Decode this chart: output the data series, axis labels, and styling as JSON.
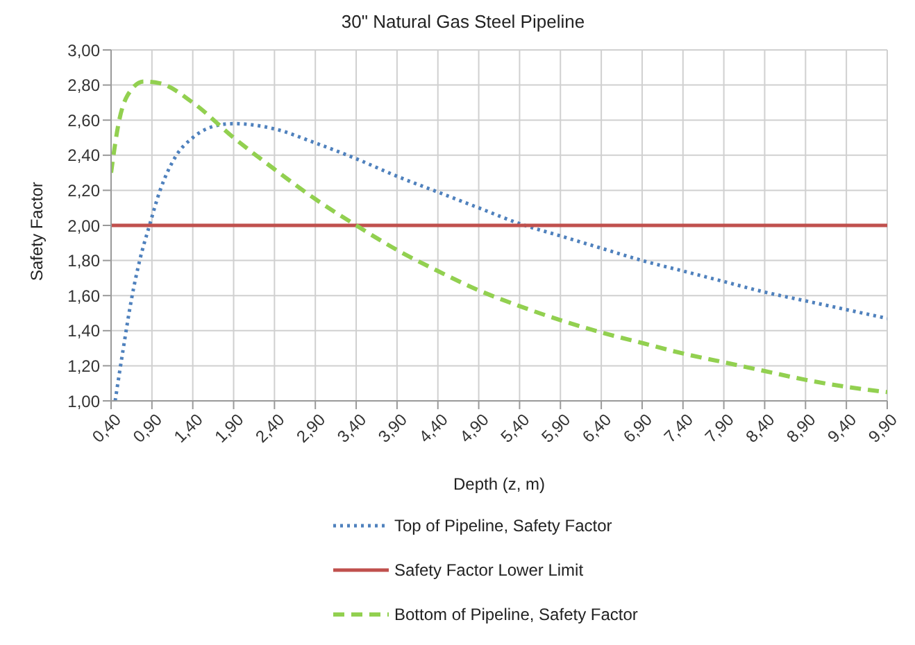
{
  "chart_data": {
    "type": "line",
    "title": "30\" Natural Gas Steel Pipeline",
    "xlabel": "Depth (z, m)",
    "ylabel": "Safety Factor",
    "xlim": [
      0.4,
      9.9
    ],
    "xticks": [
      {
        "value": 0.4,
        "label": "0,40"
      },
      {
        "value": 0.9,
        "label": "0,90"
      },
      {
        "value": 1.4,
        "label": "1,40"
      },
      {
        "value": 1.9,
        "label": "1,90"
      },
      {
        "value": 2.4,
        "label": "2,40"
      },
      {
        "value": 2.9,
        "label": "2,90"
      },
      {
        "value": 3.4,
        "label": "3,40"
      },
      {
        "value": 3.9,
        "label": "3,90"
      },
      {
        "value": 4.4,
        "label": "4,40"
      },
      {
        "value": 4.9,
        "label": "4,90"
      },
      {
        "value": 5.4,
        "label": "5,40"
      },
      {
        "value": 5.9,
        "label": "5,90"
      },
      {
        "value": 6.4,
        "label": "6,40"
      },
      {
        "value": 6.9,
        "label": "6,90"
      },
      {
        "value": 7.4,
        "label": "7,40"
      },
      {
        "value": 7.9,
        "label": "7,90"
      },
      {
        "value": 8.4,
        "label": "8,40"
      },
      {
        "value": 8.9,
        "label": "8,90"
      },
      {
        "value": 9.4,
        "label": "9,40"
      },
      {
        "value": 9.9,
        "label": "9,90"
      }
    ],
    "ylim": [
      1,
      3
    ],
    "yticks": [
      {
        "value": 1,
        "label": "1,00"
      },
      {
        "value": 1.2,
        "label": "1,20"
      },
      {
        "value": 1.4,
        "label": "1,40"
      },
      {
        "value": 1.6,
        "label": "1,60"
      },
      {
        "value": 1.8,
        "label": "1,80"
      },
      {
        "value": 2,
        "label": "2,00"
      },
      {
        "value": 2.2,
        "label": "2,20"
      },
      {
        "value": 2.4,
        "label": "2,40"
      },
      {
        "value": 2.6,
        "label": "2,60"
      },
      {
        "value": 2.8,
        "label": "2,80"
      },
      {
        "value": 3,
        "label": "3,00"
      }
    ],
    "grid": true,
    "legend": "bottom",
    "marker": "none",
    "series": [
      {
        "name": "Top of Pipeline, Safety Factor",
        "color": "#4f81bd",
        "line_style": "dotted",
        "x": [
          0.45,
          0.55,
          0.65,
          0.75,
          0.87,
          1.0,
          1.2,
          1.4,
          1.7,
          1.9,
          2.4,
          2.9,
          3.4,
          3.9,
          4.4,
          4.9,
          5.4,
          5.9,
          6.4,
          6.9,
          7.4,
          7.9,
          8.4,
          8.9,
          9.4,
          9.9
        ],
        "values": [
          1.0,
          1.3,
          1.58,
          1.8,
          2.0,
          2.2,
          2.4,
          2.5,
          2.57,
          2.58,
          2.55,
          2.47,
          2.38,
          2.28,
          2.19,
          2.1,
          2.01,
          1.94,
          1.87,
          1.8,
          1.74,
          1.68,
          1.62,
          1.57,
          1.52,
          1.47
        ]
      },
      {
        "name": "Safety Factor Lower Limit",
        "color": "#c0504d",
        "line_style": "solid",
        "x": [
          0.4,
          9.9
        ],
        "values": [
          2.0,
          2.0
        ]
      },
      {
        "name": "Bottom of Pipeline, Safety Factor",
        "color": "#92d050",
        "line_style": "dashed",
        "x": [
          0.4,
          0.5,
          0.6,
          0.8,
          1.0,
          1.4,
          1.9,
          2.4,
          2.9,
          3.4,
          3.9,
          4.4,
          4.9,
          5.4,
          5.9,
          6.4,
          6.9,
          7.4,
          7.9,
          8.4,
          8.9,
          9.4,
          9.9
        ],
        "values": [
          2.3,
          2.6,
          2.74,
          2.82,
          2.81,
          2.7,
          2.5,
          2.32,
          2.15,
          2.0,
          1.86,
          1.74,
          1.63,
          1.54,
          1.46,
          1.39,
          1.33,
          1.27,
          1.22,
          1.17,
          1.12,
          1.08,
          1.05
        ]
      }
    ]
  }
}
